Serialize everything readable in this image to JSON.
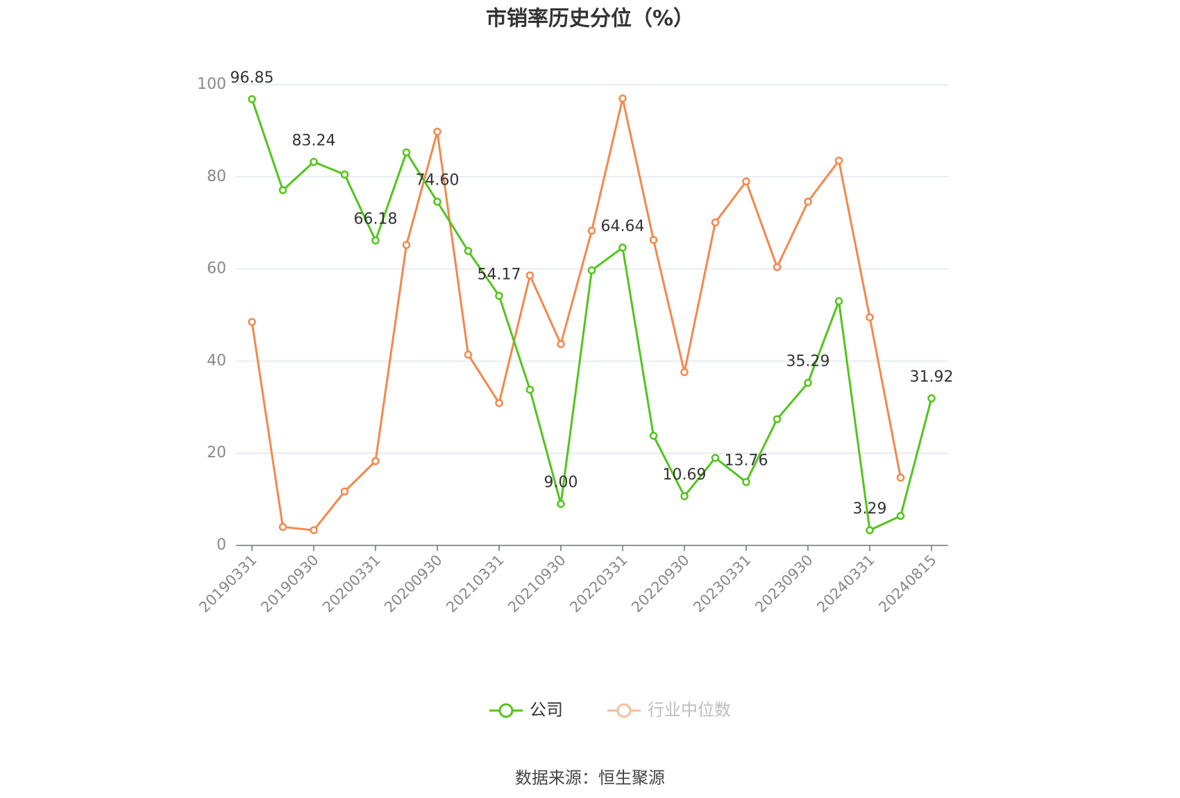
{
  "chart_data": {
    "type": "line",
    "title": "市销率历史分位（%）",
    "categories": [
      "20190331",
      null,
      "20190930",
      null,
      "20200331",
      null,
      "20200930",
      null,
      "20210331",
      null,
      "20210930",
      null,
      "20220331",
      null,
      "20220930",
      null,
      "20230331",
      null,
      "20230930",
      null,
      "20240331",
      null,
      "20240815"
    ],
    "series": [
      {
        "name": "公司",
        "color": "#52c41a",
        "values": [
          96.85,
          77.1,
          83.24,
          80.5,
          66.18,
          85.3,
          74.6,
          63.9,
          54.17,
          33.8,
          9.0,
          59.7,
          64.64,
          23.8,
          10.69,
          19.0,
          13.76,
          27.4,
          35.29,
          53.0,
          3.29,
          6.4,
          31.92
        ],
        "value_labels": [
          "96.85",
          null,
          "83.24",
          null,
          "66.18",
          null,
          "74.60",
          null,
          "54.17",
          null,
          "9.00",
          null,
          "64.64",
          null,
          "10.69",
          null,
          "13.76",
          null,
          "35.29",
          null,
          "3.29",
          null,
          "31.92"
        ]
      },
      {
        "name": "行业中位数",
        "color": "#f4874b",
        "values": [
          48.5,
          4.0,
          3.3,
          11.7,
          18.3,
          65.2,
          89.8,
          41.4,
          30.9,
          58.6,
          43.7,
          68.3,
          97.0,
          66.3,
          37.6,
          70.1,
          79.0,
          60.4,
          74.6,
          83.5,
          49.5,
          14.7,
          null
        ]
      }
    ],
    "ylim": [
      0,
      100
    ],
    "yticks": [
      0,
      20,
      40,
      60,
      80,
      100
    ],
    "grid": true,
    "legend": "bottom",
    "source": "数据来源：恒生聚源"
  }
}
